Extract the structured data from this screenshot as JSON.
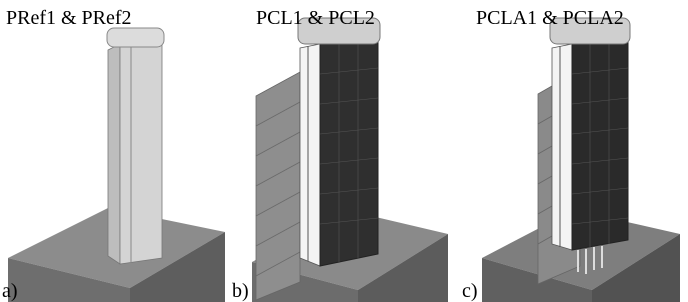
{
  "panels": [
    {
      "title": "PRef1 & PRef2",
      "label": "a)"
    },
    {
      "title": "PCL1 & PCL2",
      "label": "b)"
    },
    {
      "title": "PCLA1 & PCLA2",
      "label": "c)"
    }
  ]
}
